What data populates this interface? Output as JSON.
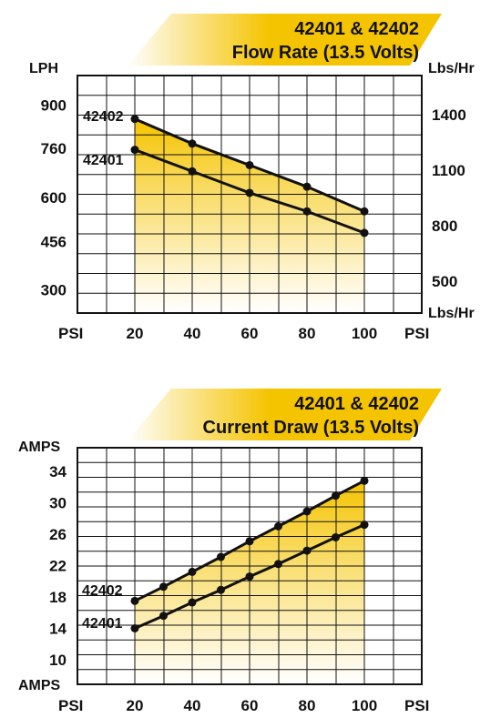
{
  "colors": {
    "accent": "#f5c400",
    "ink": "#111111",
    "fade": "#fff6cc"
  },
  "chart_data": [
    {
      "type": "line",
      "header_line1": "42401 & 42402",
      "header_line2": "Flow Rate (13.5 Volts)",
      "ylabel_left": "LPH",
      "ylabel_right": "Lbs/Hr",
      "ylabel_right_bottom": "Lbs/Hr",
      "xlabel_left": "PSI",
      "xlabel_right": "PSI",
      "x": [
        20,
        40,
        60,
        80,
        100
      ],
      "x_ticks": [
        "20",
        "40",
        "60",
        "80",
        "100"
      ],
      "ylim": [
        220,
        955
      ],
      "y_ticks_left": [
        "300",
        "456",
        "600",
        "760",
        "900"
      ],
      "y_ticks_right": [
        "500",
        "800",
        "1100",
        "1400"
      ],
      "series": [
        {
          "name": "42402",
          "values": [
            855,
            775,
            705,
            635,
            555
          ]
        },
        {
          "name": "42401",
          "values": [
            755,
            685,
            615,
            555,
            485
          ]
        }
      ],
      "grid": true
    },
    {
      "type": "line",
      "header_line1": "42401 & 42402",
      "header_line2": "Current Draw (13.5 Volts)",
      "ylabel_left": "AMPS",
      "ylabel_left_bottom": "AMPS",
      "xlabel_left": "PSI",
      "xlabel_right": "PSI",
      "x": [
        20,
        30,
        40,
        50,
        60,
        70,
        80,
        90,
        100
      ],
      "x_ticks": [
        "20",
        "40",
        "60",
        "80",
        "100"
      ],
      "ylim": [
        7,
        36
      ],
      "y_ticks_left": [
        "10",
        "14",
        "18",
        "22",
        "26",
        "30",
        "34"
      ],
      "series": [
        {
          "name": "42402",
          "values": [
            17.5,
            19.3,
            21.2,
            23.1,
            25.1,
            27.0,
            28.9,
            30.9,
            32.8
          ]
        },
        {
          "name": "42401",
          "values": [
            14.0,
            15.6,
            17.3,
            18.9,
            20.6,
            22.2,
            23.9,
            25.6,
            27.2
          ]
        }
      ],
      "grid": true
    }
  ]
}
